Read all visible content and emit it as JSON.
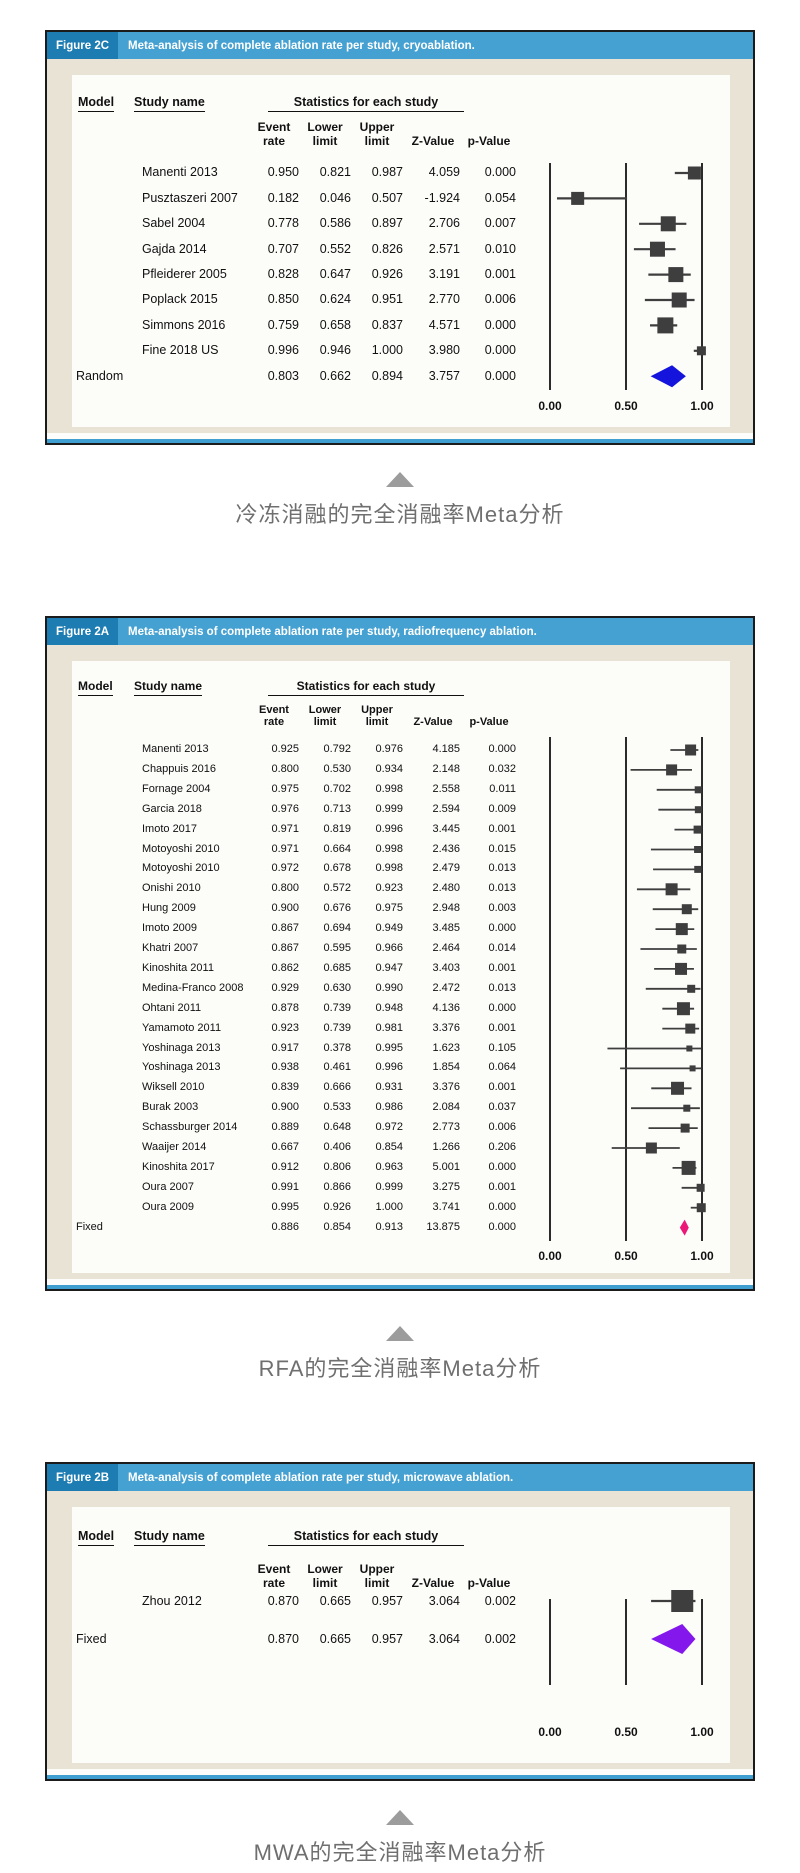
{
  "colors": {
    "header_bar": "#45a1d1",
    "header_tag_bg": "#1d7db2",
    "card_bg": "#e8e3d4",
    "panel_bg": "#fcfcf9",
    "marker": "#3e3e3e",
    "axis_line": "#2b2b2b",
    "frame_border": "#1b1b1b",
    "footer_rule": "#3f9fd0",
    "caption_text": "#6f6f6f",
    "triangle": "#9c9c9c",
    "diamond_cryo": "#1414dd",
    "diamond_rfa": "#ec1878",
    "diamond_mwa": "#8418ec"
  },
  "chart_data": [
    {
      "type": "forest",
      "figure_tag": "Figure 2C",
      "header_title": "Meta-analysis of complete ablation rate per study, cryoablation.",
      "model_header": "Model",
      "study_header": "Study name",
      "stats_header": "Statistics for each study",
      "col_head_top": [
        "Event",
        "Lower",
        "Upper",
        "",
        ""
      ],
      "col_head_bottom": [
        "rate",
        "limit",
        "limit",
        "Z-Value",
        "p-Value"
      ],
      "x_ticks": [
        "0.00",
        "0.50",
        "1.00"
      ],
      "x_tick_values": [
        0,
        0.5,
        1
      ],
      "xlim": [
        0,
        1
      ],
      "studies": [
        {
          "study": "Manenti 2013",
          "event_rate": "0.950",
          "lower": "0.821",
          "upper": "0.987",
          "z_value": "4.059",
          "p_value": "0.000",
          "weight": 13
        },
        {
          "study": "Pusztaszeri 2007",
          "event_rate": "0.182",
          "lower": "0.046",
          "upper": "0.507",
          "z_value": "-1.924",
          "p_value": "0.054",
          "weight": 13
        },
        {
          "study": "Sabel 2004",
          "event_rate": "0.778",
          "lower": "0.586",
          "upper": "0.897",
          "z_value": "2.706",
          "p_value": "0.007",
          "weight": 15
        },
        {
          "study": "Gajda 2014",
          "event_rate": "0.707",
          "lower": "0.552",
          "upper": "0.826",
          "z_value": "2.571",
          "p_value": "0.010",
          "weight": 15
        },
        {
          "study": "Pfleiderer 2005",
          "event_rate": "0.828",
          "lower": "0.647",
          "upper": "0.926",
          "z_value": "3.191",
          "p_value": "0.001",
          "weight": 15
        },
        {
          "study": "Poplack 2015",
          "event_rate": "0.850",
          "lower": "0.624",
          "upper": "0.951",
          "z_value": "2.770",
          "p_value": "0.006",
          "weight": 15
        },
        {
          "study": "Simmons 2016",
          "event_rate": "0.759",
          "lower": "0.658",
          "upper": "0.837",
          "z_value": "4.571",
          "p_value": "0.000",
          "weight": 16
        },
        {
          "study": "Fine 2018 US",
          "event_rate": "0.996",
          "lower": "0.946",
          "upper": "1.000",
          "z_value": "3.980",
          "p_value": "0.000",
          "weight": 9
        }
      ],
      "summary": {
        "model": "Random",
        "event_rate": "0.803",
        "lower": "0.662",
        "upper": "0.894",
        "z_value": "3.757",
        "p_value": "0.000",
        "diamond_color": "#1414dd"
      },
      "caption": "冷冻消融的完全消融率Meta分析"
    },
    {
      "type": "forest",
      "figure_tag": "Figure 2A",
      "header_title": "Meta-analysis of complete ablation rate per study, radiofrequency ablation.",
      "model_header": "Model",
      "study_header": "Study name",
      "stats_header": "Statistics for each study",
      "col_head_top": [
        "Event",
        "Lower",
        "Upper",
        "",
        ""
      ],
      "col_head_bottom": [
        "rate",
        "limit",
        "limit",
        "Z-Value",
        "p-Value"
      ],
      "x_ticks": [
        "0.00",
        "0.50",
        "1.00"
      ],
      "x_tick_values": [
        0,
        0.5,
        1
      ],
      "xlim": [
        0,
        1
      ],
      "studies": [
        {
          "study": "Manenti 2013",
          "event_rate": "0.925",
          "lower": "0.792",
          "upper": "0.976",
          "z_value": "4.185",
          "p_value": "0.000",
          "weight": 11
        },
        {
          "study": "Chappuis 2016",
          "event_rate": "0.800",
          "lower": "0.530",
          "upper": "0.934",
          "z_value": "2.148",
          "p_value": "0.032",
          "weight": 11
        },
        {
          "study": "Fornage 2004",
          "event_rate": "0.975",
          "lower": "0.702",
          "upper": "0.998",
          "z_value": "2.558",
          "p_value": "0.011",
          "weight": 7
        },
        {
          "study": "Garcia 2018",
          "event_rate": "0.976",
          "lower": "0.713",
          "upper": "0.999",
          "z_value": "2.594",
          "p_value": "0.009",
          "weight": 7
        },
        {
          "study": "Imoto 2017",
          "event_rate": "0.971",
          "lower": "0.819",
          "upper": "0.996",
          "z_value": "3.445",
          "p_value": "0.001",
          "weight": 8
        },
        {
          "study": "Motoyoshi 2010",
          "event_rate": "0.971",
          "lower": "0.664",
          "upper": "0.998",
          "z_value": "2.436",
          "p_value": "0.015",
          "weight": 7
        },
        {
          "study": "Motoyoshi 2010",
          "event_rate": "0.972",
          "lower": "0.678",
          "upper": "0.998",
          "z_value": "2.479",
          "p_value": "0.013",
          "weight": 7
        },
        {
          "study": "Onishi 2010",
          "event_rate": "0.800",
          "lower": "0.572",
          "upper": "0.923",
          "z_value": "2.480",
          "p_value": "0.013",
          "weight": 12
        },
        {
          "study": "Hung 2009",
          "event_rate": "0.900",
          "lower": "0.676",
          "upper": "0.975",
          "z_value": "2.948",
          "p_value": "0.003",
          "weight": 10
        },
        {
          "study": "Imoto 2009",
          "event_rate": "0.867",
          "lower": "0.694",
          "upper": "0.949",
          "z_value": "3.485",
          "p_value": "0.000",
          "weight": 12
        },
        {
          "study": "Khatri 2007",
          "event_rate": "0.867",
          "lower": "0.595",
          "upper": "0.966",
          "z_value": "2.464",
          "p_value": "0.014",
          "weight": 9
        },
        {
          "study": "Kinoshita 2011",
          "event_rate": "0.862",
          "lower": "0.685",
          "upper": "0.947",
          "z_value": "3.403",
          "p_value": "0.001",
          "weight": 12
        },
        {
          "study": "Medina-Franco 2008",
          "event_rate": "0.929",
          "lower": "0.630",
          "upper": "0.990",
          "z_value": "2.472",
          "p_value": "0.013",
          "weight": 8
        },
        {
          "study": "Ohtani 2011",
          "event_rate": "0.878",
          "lower": "0.739",
          "upper": "0.948",
          "z_value": "4.136",
          "p_value": "0.000",
          "weight": 13
        },
        {
          "study": "Yamamoto 2011",
          "event_rate": "0.923",
          "lower": "0.739",
          "upper": "0.981",
          "z_value": "3.376",
          "p_value": "0.001",
          "weight": 10
        },
        {
          "study": "Yoshinaga 2013",
          "event_rate": "0.917",
          "lower": "0.378",
          "upper": "0.995",
          "z_value": "1.623",
          "p_value": "0.105",
          "weight": 6
        },
        {
          "study": "Yoshinaga 2013",
          "event_rate": "0.938",
          "lower": "0.461",
          "upper": "0.996",
          "z_value": "1.854",
          "p_value": "0.064",
          "weight": 6
        },
        {
          "study": "Wiksell 2010",
          "event_rate": "0.839",
          "lower": "0.666",
          "upper": "0.931",
          "z_value": "3.376",
          "p_value": "0.001",
          "weight": 13
        },
        {
          "study": "Burak 2003",
          "event_rate": "0.900",
          "lower": "0.533",
          "upper": "0.986",
          "z_value": "2.084",
          "p_value": "0.037",
          "weight": 7
        },
        {
          "study": "Schassburger 2014",
          "event_rate": "0.889",
          "lower": "0.648",
          "upper": "0.972",
          "z_value": "2.773",
          "p_value": "0.006",
          "weight": 9
        },
        {
          "study": "Waaijer 2014",
          "event_rate": "0.667",
          "lower": "0.406",
          "upper": "0.854",
          "z_value": "1.266",
          "p_value": "0.206",
          "weight": 11
        },
        {
          "study": "Kinoshita 2017",
          "event_rate": "0.912",
          "lower": "0.806",
          "upper": "0.963",
          "z_value": "5.001",
          "p_value": "0.000",
          "weight": 14
        },
        {
          "study": "Oura 2007",
          "event_rate": "0.991",
          "lower": "0.866",
          "upper": "0.999",
          "z_value": "3.275",
          "p_value": "0.001",
          "weight": 8
        },
        {
          "study": "Oura 2009",
          "event_rate": "0.995",
          "lower": "0.926",
          "upper": "1.000",
          "z_value": "3.741",
          "p_value": "0.000",
          "weight": 9
        }
      ],
      "summary": {
        "model": "Fixed",
        "event_rate": "0.886",
        "lower": "0.854",
        "upper": "0.913",
        "z_value": "13.875",
        "p_value": "0.000",
        "diamond_color": "#ec1878"
      },
      "caption": "RFA的完全消融率Meta分析"
    },
    {
      "type": "forest",
      "figure_tag": "Figure 2B",
      "header_title": "Meta-analysis of complete ablation rate per study, microwave ablation.",
      "model_header": "Model",
      "study_header": "Study name",
      "stats_header": "Statistics for each study",
      "col_head_top": [
        "Event",
        "Lower",
        "Upper",
        "",
        ""
      ],
      "col_head_bottom": [
        "rate",
        "limit",
        "limit",
        "Z-Value",
        "p-Value"
      ],
      "x_ticks": [
        "0.00",
        "0.50",
        "1.00"
      ],
      "x_tick_values": [
        0,
        0.5,
        1
      ],
      "xlim": [
        0,
        1
      ],
      "studies": [
        {
          "study": "Zhou 2012",
          "event_rate": "0.870",
          "lower": "0.665",
          "upper": "0.957",
          "z_value": "3.064",
          "p_value": "0.002",
          "weight": 22
        }
      ],
      "summary": {
        "model": "Fixed",
        "event_rate": "0.870",
        "lower": "0.665",
        "upper": "0.957",
        "z_value": "3.064",
        "p_value": "0.002",
        "diamond_color": "#8418ec"
      },
      "caption": "MWA的完全消融率Meta分析"
    }
  ]
}
